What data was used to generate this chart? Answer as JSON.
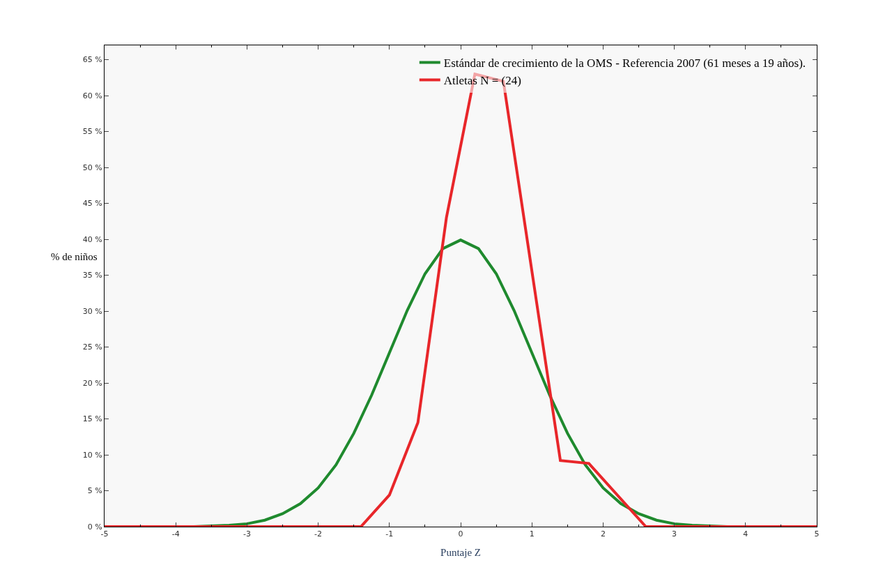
{
  "chart_data": {
    "type": "line",
    "xlabel": "Puntaje Z",
    "ylabel": "% de niños",
    "xlim": [
      -5,
      5
    ],
    "xticks": [
      -5,
      -4,
      -3,
      -2,
      -1,
      0,
      1,
      2,
      3,
      4,
      5
    ],
    "ylim": [
      0,
      67
    ],
    "yticks": [
      {
        "value": 0,
        "label": "0 %"
      },
      {
        "value": 5,
        "label": "5 %"
      },
      {
        "value": 10,
        "label": "10 %"
      },
      {
        "value": 15,
        "label": "15 %"
      },
      {
        "value": 20,
        "label": "20 %"
      },
      {
        "value": 25,
        "label": "25 %"
      },
      {
        "value": 30,
        "label": "30 %"
      },
      {
        "value": 35,
        "label": "35 %"
      },
      {
        "value": 40,
        "label": "40 %"
      },
      {
        "value": 45,
        "label": "45 %"
      },
      {
        "value": 50,
        "label": "50 %"
      },
      {
        "value": 55,
        "label": "55 %"
      },
      {
        "value": 60,
        "label": "60 %"
      },
      {
        "value": 65,
        "label": "65 %"
      }
    ],
    "grid": false,
    "legend": "top right",
    "marker": "none",
    "line_style": "solid",
    "series": [
      {
        "name": "Estándar de crecimiento de la OMS - Referencia 2007 (61 meses a 19 años).",
        "color": "#1f8a2e",
        "x": [
          -5,
          -4,
          -3.75,
          -3.5,
          -3.25,
          -3,
          -2.75,
          -2.5,
          -2.25,
          -2,
          -1.75,
          -1.5,
          -1.25,
          -1,
          -0.75,
          -0.5,
          -0.25,
          0,
          0.25,
          0.5,
          0.75,
          1,
          1.25,
          1.5,
          1.75,
          2,
          2.25,
          2.5,
          2.75,
          3,
          3.25,
          3.5,
          3.75,
          4,
          5
        ],
        "values": [
          0,
          0,
          0,
          0.1,
          0.2,
          0.4,
          0.9,
          1.8,
          3.2,
          5.4,
          8.6,
          13.0,
          18.3,
          24.2,
          30.1,
          35.2,
          38.7,
          39.9,
          38.7,
          35.2,
          30.1,
          24.2,
          18.3,
          13.0,
          8.6,
          5.4,
          3.2,
          1.8,
          0.9,
          0.4,
          0.2,
          0.1,
          0,
          0,
          0
        ]
      },
      {
        "name": "Atletas N = (24)",
        "color": "#e8262a",
        "x": [
          -5,
          -1.4,
          -1,
          -0.6,
          -0.2,
          0.2,
          0.6,
          1.4,
          1.8,
          2.6,
          5
        ],
        "values": [
          0,
          0,
          4.4,
          14.5,
          43,
          63,
          62,
          9.2,
          8.8,
          0,
          0
        ]
      }
    ]
  }
}
